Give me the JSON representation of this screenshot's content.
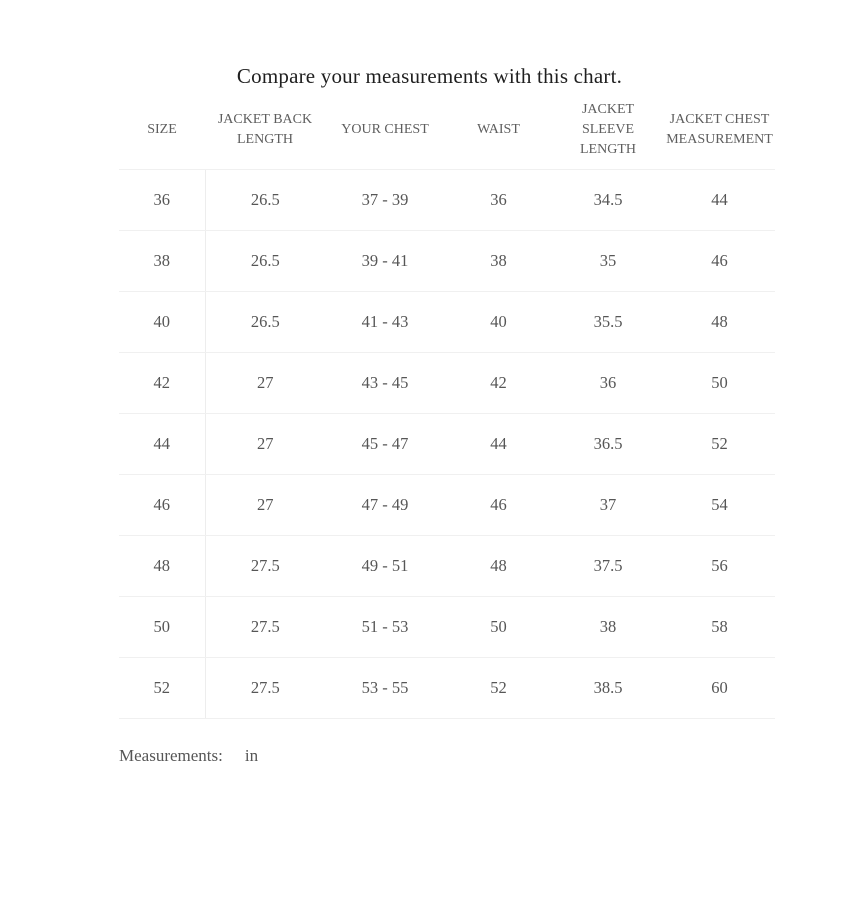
{
  "title": "Compare your measurements with this chart.",
  "table": {
    "columns": [
      "SIZE",
      "JACKET BACK LENGTH",
      "YOUR CHEST",
      "WAIST",
      "JACKET SLEEVE LENGTH",
      "JACKET CHEST MEASUREMENT"
    ],
    "rows": [
      [
        "36",
        "26.5",
        "37 - 39",
        "36",
        "34.5",
        "44"
      ],
      [
        "38",
        "26.5",
        "39 - 41",
        "38",
        "35",
        "46"
      ],
      [
        "40",
        "26.5",
        "41 - 43",
        "40",
        "35.5",
        "48"
      ],
      [
        "42",
        "27",
        "43 - 45",
        "42",
        "36",
        "50"
      ],
      [
        "44",
        "27",
        "45 - 47",
        "44",
        "36.5",
        "52"
      ],
      [
        "46",
        "27",
        "47 - 49",
        "46",
        "37",
        "54"
      ],
      [
        "48",
        "27.5",
        "49 - 51",
        "48",
        "37.5",
        "56"
      ],
      [
        "50",
        "27.5",
        "51 - 53",
        "50",
        "38",
        "58"
      ],
      [
        "52",
        "27.5",
        "53 - 55",
        "52",
        "38.5",
        "60"
      ]
    ]
  },
  "footer": {
    "label": "Measurements:",
    "unit": "in"
  },
  "colors": {
    "title_text": "#1f1f1f",
    "header_text": "#5e5e5e",
    "cell_text": "#565656",
    "row_divider": "#f0f0f0",
    "column_divider": "#ededed",
    "background": "#ffffff"
  }
}
